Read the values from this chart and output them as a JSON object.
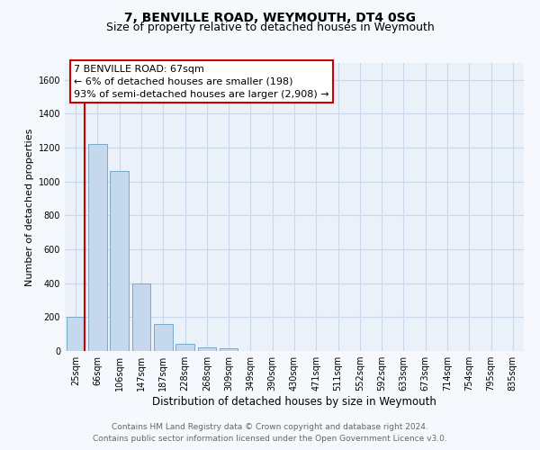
{
  "title": "7, BENVILLE ROAD, WEYMOUTH, DT4 0SG",
  "subtitle": "Size of property relative to detached houses in Weymouth",
  "xlabel": "Distribution of detached houses by size in Weymouth",
  "ylabel": "Number of detached properties",
  "bar_labels": [
    "25sqm",
    "66sqm",
    "106sqm",
    "147sqm",
    "187sqm",
    "228sqm",
    "268sqm",
    "309sqm",
    "349sqm",
    "390sqm",
    "430sqm",
    "471sqm",
    "511sqm",
    "552sqm",
    "592sqm",
    "633sqm",
    "673sqm",
    "714sqm",
    "754sqm",
    "795sqm",
    "835sqm"
  ],
  "bar_values": [
    200,
    1220,
    1065,
    400,
    160,
    40,
    20,
    15,
    0,
    0,
    0,
    0,
    0,
    0,
    0,
    0,
    0,
    0,
    0,
    0,
    0
  ],
  "bar_color": "#c5d8ee",
  "bar_edge_color": "#7aaac8",
  "highlight_color": "#cc0000",
  "ylim": [
    0,
    1700
  ],
  "yticks": [
    0,
    200,
    400,
    600,
    800,
    1000,
    1200,
    1400,
    1600
  ],
  "annotation_title": "7 BENVILLE ROAD: 67sqm",
  "annotation_line1": "← 6% of detached houses are smaller (198)",
  "annotation_line2": "93% of semi-detached houses are larger (2,908) →",
  "annotation_box_color": "#ffffff",
  "annotation_box_edge": "#cc0000",
  "footer_line1": "Contains HM Land Registry data © Crown copyright and database right 2024.",
  "footer_line2": "Contains public sector information licensed under the Open Government Licence v3.0.",
  "bg_color": "#f5f8fd",
  "plot_bg_color": "#eaf1f9",
  "grid_color": "#c8d8ea",
  "title_fontsize": 10,
  "subtitle_fontsize": 9,
  "xlabel_fontsize": 8.5,
  "ylabel_fontsize": 8,
  "tick_fontsize": 7,
  "footer_fontsize": 6.5,
  "annotation_fontsize": 8
}
